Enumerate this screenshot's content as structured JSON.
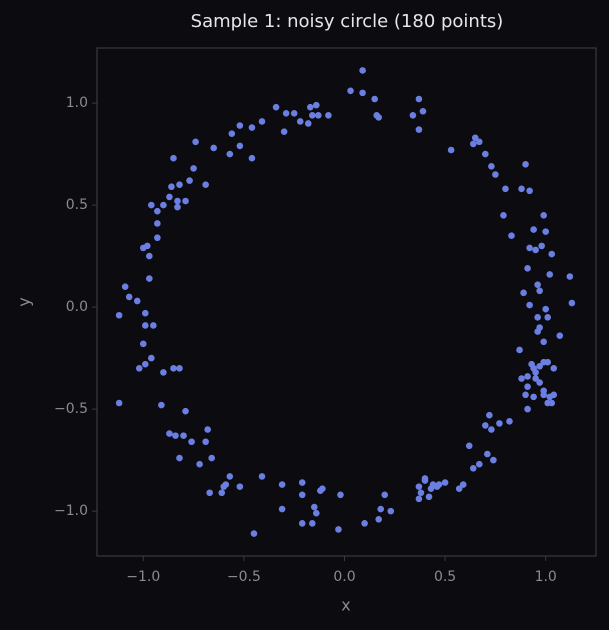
{
  "chart_data": {
    "type": "scatter",
    "title": "Sample 1: noisy circle (180 points)",
    "x_label": "x",
    "y_label": "y",
    "color": "#6b7fe3",
    "xlim": [
      -1.23,
      1.25
    ],
    "ylim": [
      -1.22,
      1.27
    ],
    "xticks": [
      {
        "value": -1.0,
        "label": "−1.0"
      },
      {
        "value": -0.5,
        "label": "−0.5"
      },
      {
        "value": 0.0,
        "label": "0.0"
      },
      {
        "value": 0.5,
        "label": "0.5"
      },
      {
        "value": 1.0,
        "label": "1.0"
      }
    ],
    "yticks": [
      {
        "value": -1.0,
        "label": "−1.0"
      },
      {
        "value": -0.5,
        "label": "−0.5"
      },
      {
        "value": 0.0,
        "label": "0.0"
      },
      {
        "value": 0.5,
        "label": "0.5"
      },
      {
        "value": 1.0,
        "label": "1.0"
      }
    ],
    "x": [
      0.09,
      0.03,
      0.09,
      0.15,
      0.37,
      0.39,
      0.16,
      0.17,
      0.34,
      0.37,
      -0.34,
      -0.29,
      -0.25,
      -0.17,
      -0.14,
      -0.16,
      -0.22,
      -0.13,
      -0.08,
      -0.3,
      -0.18,
      -0.41,
      -0.52,
      -0.46,
      -0.52,
      -0.56,
      -0.65,
      -0.57,
      -0.46,
      -0.74,
      -0.75,
      -0.77,
      -0.82,
      -0.69,
      -0.85,
      -0.86,
      -0.87,
      -0.9,
      -0.83,
      -0.83,
      -0.79,
      -0.96,
      -0.93,
      -0.93,
      -0.93,
      -0.98,
      -1.0,
      -0.97,
      -0.97,
      -1.09,
      -1.07,
      -1.03,
      -1.12,
      -0.99,
      -0.99,
      -0.95,
      -1.0,
      -0.96,
      -0.99,
      -1.02,
      -0.9,
      -0.85,
      -0.82,
      -1.12,
      -0.91,
      -0.79,
      -0.87,
      -0.84,
      -0.8,
      -0.76,
      -0.82,
      -0.68,
      -0.69,
      -0.66,
      -0.72,
      -0.67,
      -0.61,
      -0.6,
      -0.59,
      -0.57,
      -0.52,
      -0.41,
      -0.31,
      -0.31,
      -0.21,
      -0.21,
      -0.15,
      -0.14,
      -0.21,
      -0.16,
      -0.11,
      -0.12,
      -0.02,
      -0.03,
      0.1,
      0.17,
      0.18,
      0.2,
      0.23,
      -0.45,
      0.37,
      0.4,
      0.43,
      0.44,
      0.46,
      0.47,
      0.37,
      0.42,
      0.38,
      0.4,
      0.5,
      0.57,
      0.59,
      0.62,
      0.64,
      0.67,
      0.74,
      0.71,
      0.7,
      0.72,
      0.77,
      0.73,
      0.82,
      0.91,
      0.94,
      0.9,
      0.88,
      0.91,
      0.95,
      0.99,
      0.95,
      0.87,
      0.91,
      0.97,
      0.99,
      1.02,
      1.04,
      1.01,
      1.03,
      0.97,
      0.93,
      0.94,
      0.99,
      1.01,
      1.04,
      1.07,
      0.99,
      0.97,
      0.96,
      0.96,
      0.92,
      1.0,
      1.01,
      1.13,
      1.12,
      1.02,
      0.97,
      0.96,
      0.91,
      0.89,
      1.03,
      0.98,
      0.95,
      0.92,
      1.0,
      0.94,
      0.99,
      0.92,
      0.88,
      0.9,
      0.8,
      0.79,
      0.83,
      0.75,
      0.73,
      0.7,
      0.67,
      0.65,
      0.64,
      0.53
    ],
    "values": [
      1.16,
      1.06,
      1.05,
      1.02,
      1.02,
      0.96,
      0.94,
      0.93,
      0.94,
      0.87,
      0.98,
      0.95,
      0.95,
      0.98,
      0.99,
      0.94,
      0.91,
      0.94,
      0.94,
      0.86,
      0.9,
      0.91,
      0.89,
      0.88,
      0.79,
      0.85,
      0.78,
      0.75,
      0.73,
      0.81,
      0.68,
      0.62,
      0.6,
      0.6,
      0.73,
      0.59,
      0.54,
      0.5,
      0.52,
      0.49,
      0.52,
      0.5,
      0.47,
      0.41,
      0.34,
      0.3,
      0.29,
      0.25,
      0.14,
      0.1,
      0.05,
      0.03,
      -0.04,
      -0.03,
      -0.09,
      -0.09,
      -0.18,
      -0.25,
      -0.28,
      -0.3,
      -0.32,
      -0.3,
      -0.3,
      -0.47,
      -0.48,
      -0.51,
      -0.62,
      -0.63,
      -0.63,
      -0.66,
      -0.74,
      -0.6,
      -0.66,
      -0.74,
      -0.77,
      -0.91,
      -0.91,
      -0.88,
      -0.87,
      -0.83,
      -0.88,
      -0.83,
      -0.87,
      -0.99,
      -0.86,
      -0.92,
      -0.98,
      -1.01,
      -1.06,
      -1.06,
      -0.89,
      -0.9,
      -0.92,
      -1.09,
      -1.06,
      -1.04,
      -0.99,
      -0.92,
      -1.0,
      -1.11,
      -0.88,
      -0.85,
      -0.89,
      -0.87,
      -0.88,
      -0.87,
      -0.94,
      -0.93,
      -0.91,
      -0.84,
      -0.86,
      -0.89,
      -0.87,
      -0.68,
      -0.79,
      -0.77,
      -0.75,
      -0.72,
      -0.58,
      -0.53,
      -0.57,
      -0.6,
      -0.56,
      -0.5,
      -0.44,
      -0.43,
      -0.35,
      -0.34,
      -0.32,
      -0.43,
      -0.35,
      -0.21,
      -0.39,
      -0.37,
      -0.41,
      -0.44,
      -0.43,
      -0.47,
      -0.47,
      -0.29,
      -0.28,
      -0.3,
      -0.27,
      -0.27,
      -0.3,
      -0.14,
      -0.17,
      -0.1,
      -0.12,
      -0.05,
      0.01,
      -0.01,
      -0.05,
      0.02,
      0.15,
      0.16,
      0.08,
      0.11,
      0.19,
      0.07,
      0.26,
      0.3,
      0.28,
      0.29,
      0.37,
      0.38,
      0.45,
      0.57,
      0.58,
      0.7,
      0.58,
      0.45,
      0.35,
      0.65,
      0.69,
      0.75,
      0.81,
      0.83,
      0.8,
      0.77
    ]
  }
}
